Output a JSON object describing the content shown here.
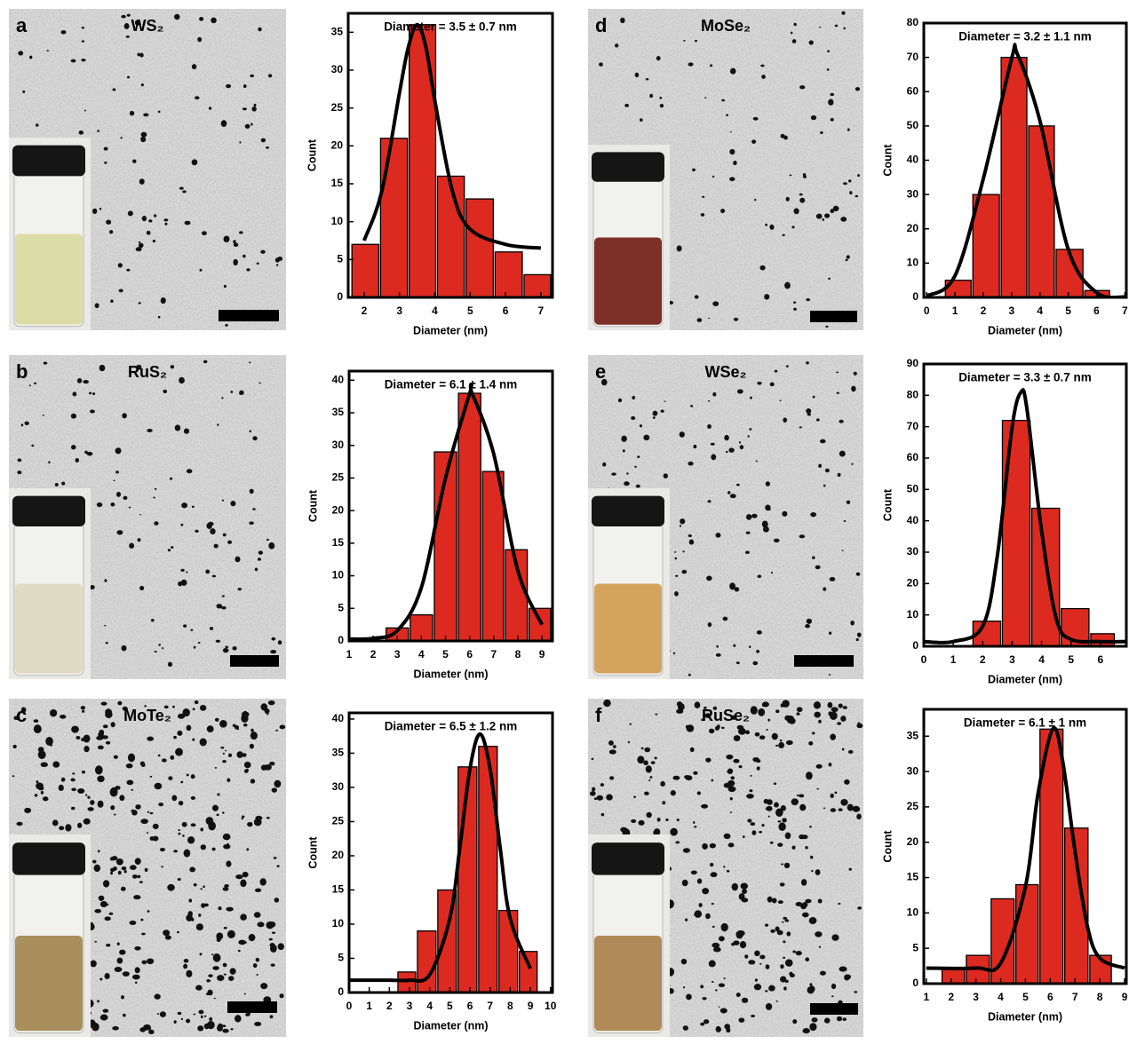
{
  "panels": [
    {
      "label": "a",
      "material": "WS₂"
    },
    {
      "label": "b",
      "material": "RuS₂"
    },
    {
      "label": "c",
      "material": "MoTe₂"
    },
    {
      "label": "d",
      "material": "MoSe₂"
    },
    {
      "label": "e",
      "material": "WSe₂"
    },
    {
      "label": "f",
      "material": "RuSe₂"
    }
  ],
  "chart_data": [
    {
      "type": "histogram",
      "annotation": "Diameter = 3.5 ± 0.7 nm",
      "xlabel": "Diameter (nm)",
      "ylabel": "Count",
      "color": "#dd2a20",
      "bins": [
        1.63,
        2.44,
        3.25,
        4.05,
        4.86,
        5.68,
        6.5,
        7.3
      ],
      "values": [
        7,
        21,
        36,
        16,
        13,
        6,
        3
      ],
      "xlim": [
        1.55,
        7.33
      ],
      "ylim": [
        0,
        37.5
      ],
      "xticks": [
        2,
        3,
        4,
        5,
        6,
        7
      ],
      "yticks": [
        0,
        5,
        10,
        15,
        20,
        25,
        30,
        35
      ],
      "fit": {
        "x": [
          2,
          2.5,
          3,
          3.25,
          3.5,
          3.75,
          4,
          4.5,
          5,
          6,
          7
        ],
        "y": [
          7.5,
          14,
          27,
          33,
          36,
          33,
          26,
          14,
          9,
          7,
          6.5
        ]
      }
    },
    {
      "type": "histogram",
      "annotation": "Diameter = 6.1 ± 1.4 nm",
      "xlabel": "Diameter (nm)",
      "ylabel": "Count",
      "color": "#dd2a20",
      "bins": [
        2.5,
        3.5,
        4.5,
        5.5,
        6.5,
        7.45,
        8.43,
        9.4
      ],
      "values": [
        2,
        4,
        29,
        38,
        26,
        14,
        5
      ],
      "xlim": [
        1,
        9.44
      ],
      "ylim": [
        0,
        41.4
      ],
      "xticks": [
        1,
        2,
        3,
        4,
        5,
        6,
        7,
        8,
        9
      ],
      "yticks": [
        0,
        5,
        10,
        15,
        20,
        25,
        30,
        35,
        40
      ],
      "fit": {
        "x": [
          1,
          2,
          3,
          4,
          5,
          6,
          6.1,
          7,
          8,
          9
        ],
        "y": [
          0.3,
          0.4,
          1.6,
          8.2,
          25,
          37.9,
          38,
          28.7,
          10.8,
          2.5
        ]
      }
    },
    {
      "type": "histogram",
      "annotation": "Diameter = 6.5 ± 1.2 nm",
      "xlabel": "Diameter (nm)",
      "ylabel": "Count",
      "color": "#dd2a20",
      "bins": [
        2.38,
        3.35,
        4.36,
        5.37,
        6.39,
        7.4,
        8.41,
        9.38
      ],
      "values": [
        3,
        9,
        15,
        33,
        36,
        12,
        6
      ],
      "xlim": [
        0,
        10.1
      ],
      "ylim": [
        0,
        40.9
      ],
      "xticks": [
        0,
        1,
        2,
        3,
        4,
        5,
        6,
        7,
        8,
        9,
        10
      ],
      "yticks": [
        0,
        5,
        10,
        15,
        20,
        25,
        30,
        35,
        40
      ],
      "fit": {
        "x": [
          0,
          2,
          3,
          4,
          5,
          5.5,
          6,
          6.5,
          7,
          7.5,
          8,
          9
        ],
        "y": [
          1.8,
          1.8,
          1.8,
          2.6,
          10.8,
          21.2,
          32.7,
          37.8,
          32.7,
          21.2,
          10.8,
          3.5
        ]
      }
    },
    {
      "type": "histogram",
      "annotation": "Diameter = 3.2 ± 1.1 nm",
      "xlabel": "Diameter (nm)",
      "ylabel": "Count",
      "color": "#dd2a20",
      "bins": [
        0.63,
        1.6,
        2.6,
        3.57,
        4.54,
        5.55,
        6.49
      ],
      "values": [
        5,
        30,
        70,
        50,
        14,
        2
      ],
      "xlim": [
        -0.1,
        7.05
      ],
      "ylim": [
        0,
        80
      ],
      "xticks": [
        0,
        1,
        2,
        3,
        4,
        5,
        6,
        7
      ],
      "yticks": [
        0,
        10,
        20,
        30,
        40,
        50,
        60,
        70,
        80
      ],
      "fit": {
        "x": [
          0,
          1,
          2,
          3,
          3.2,
          4,
          5,
          6,
          7
        ],
        "y": [
          0.4,
          6.3,
          34.6,
          69.6,
          71,
          51.5,
          14,
          1.4,
          0.1
        ]
      }
    },
    {
      "type": "histogram",
      "annotation": "Diameter = 3.3 ± 0.7 nm",
      "xlabel": "Diameter (nm)",
      "ylabel": "Count",
      "color": "#dd2a20",
      "bins": [
        1.64,
        2.64,
        3.64,
        4.64,
        5.64,
        6.5
      ],
      "values": [
        8,
        72,
        44,
        12,
        4
      ],
      "xlim": [
        0,
        6.88
      ],
      "ylim": [
        0,
        90
      ],
      "xticks": [
        0,
        1,
        2,
        3,
        4,
        5,
        6
      ],
      "yticks": [
        0,
        10,
        20,
        30,
        40,
        50,
        60,
        70,
        80,
        90
      ],
      "fit": {
        "x": [
          0,
          1,
          2,
          2.5,
          3,
          3.3,
          3.5,
          4,
          4.5,
          5,
          6,
          6.88
        ],
        "y": [
          1.5,
          1.5,
          6.4,
          29,
          69.9,
          81,
          75.9,
          36.9,
          8.8,
          2.2,
          1.5,
          1.5
        ]
      }
    },
    {
      "type": "histogram",
      "annotation": "Diameter = 6.1 ± 1 nm",
      "xlabel": "Diameter (nm)",
      "ylabel": "Count",
      "color": "#dd2a20",
      "bins": [
        1.6,
        2.58,
        3.58,
        4.58,
        5.55,
        6.55,
        7.56,
        8.5
      ],
      "values": [
        2,
        4,
        12,
        14,
        36,
        22,
        4
      ],
      "xlim": [
        0.9,
        9.07
      ],
      "ylim": [
        0,
        38.8
      ],
      "xticks": [
        1,
        2,
        3,
        4,
        5,
        6,
        7,
        8,
        9
      ],
      "yticks": [
        0,
        5,
        10,
        15,
        20,
        25,
        30,
        35
      ],
      "fit": {
        "x": [
          1,
          3,
          4,
          5,
          5.5,
          6.1,
          6.5,
          7,
          7.5,
          8,
          9
        ],
        "y": [
          2.2,
          2.2,
          2.9,
          13.7,
          26.7,
          36,
          31.5,
          18.7,
          8.1,
          3.6,
          2.2
        ]
      }
    }
  ]
}
